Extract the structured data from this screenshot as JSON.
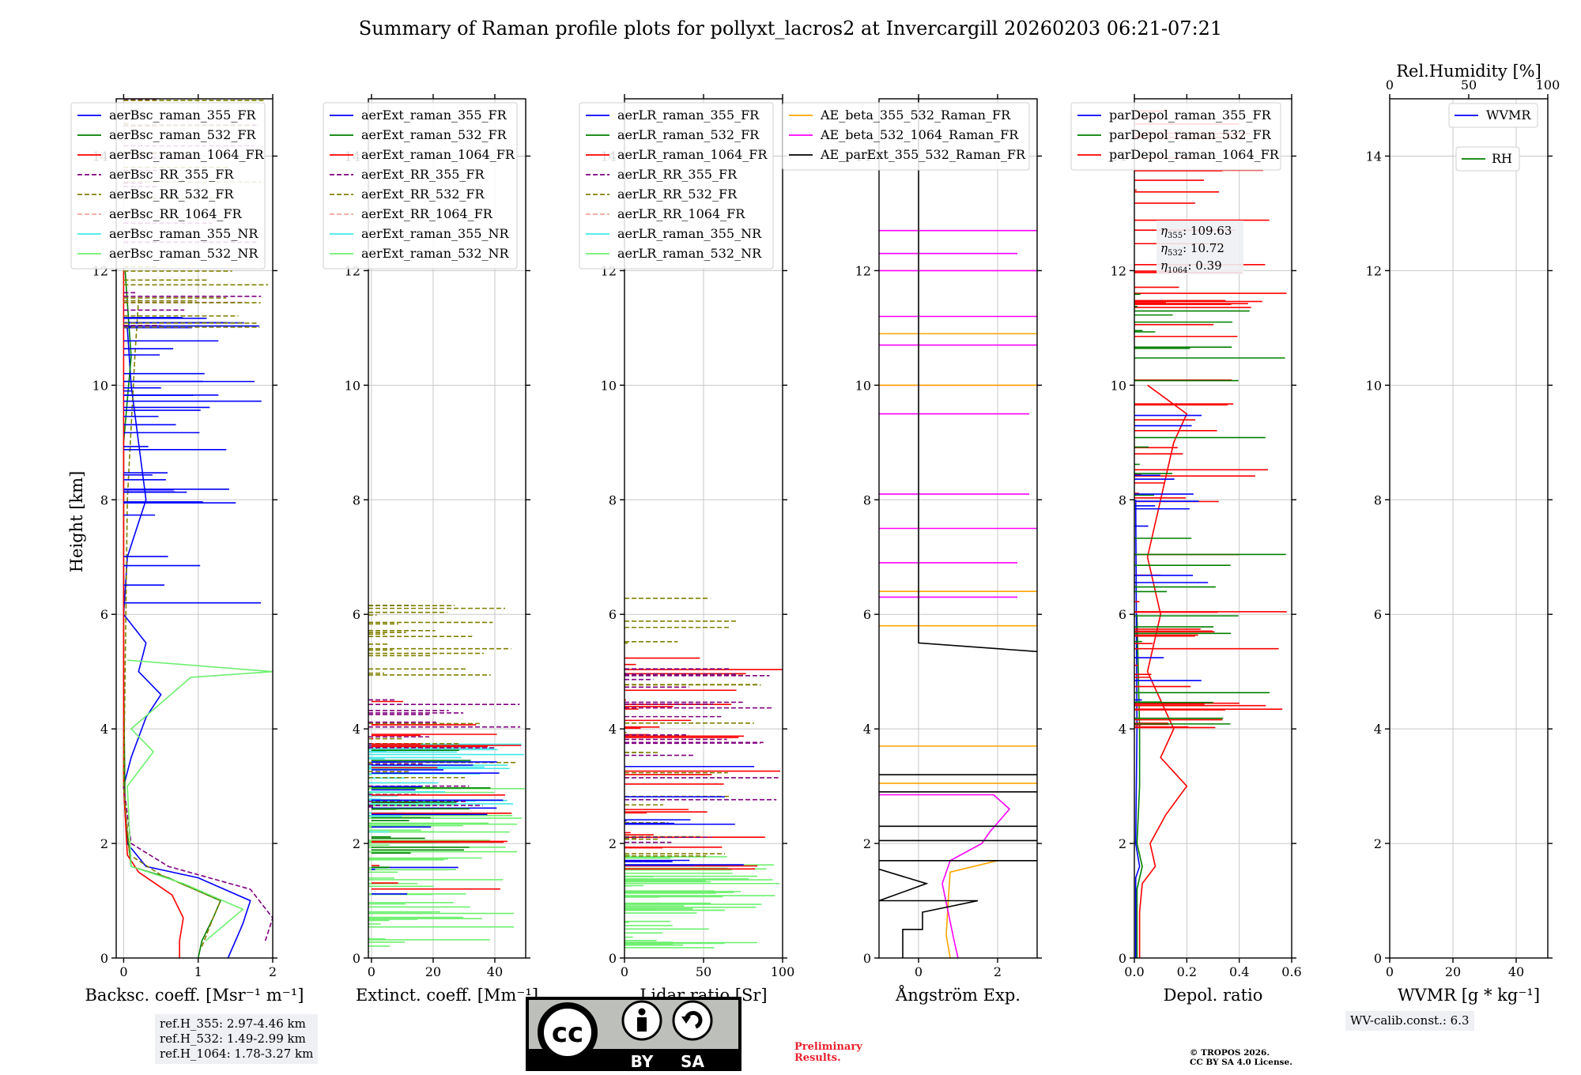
{
  "title": "Summary of Raman profile plots for pollyxt_lacros2 at Invercargill 20260203 06:21-07:21",
  "ylabel": "Height [km]",
  "colors": {
    "c355": "#0000ff",
    "c532": "#008000",
    "c1064": "#ff0000",
    "rr355": "#800080",
    "rr532": "#808000",
    "rr1064": "#f4a39a",
    "nr355": "#40e8e8",
    "nr532": "#6ef06e",
    "orange": "#ffa500",
    "magenta": "#ff00ff",
    "black": "#000000"
  },
  "chart_data": [
    {
      "type": "line",
      "name": "backscatter",
      "xlabel": "Backsc. coeff. [Msr⁻¹ m⁻¹]",
      "xlim": [
        -0.1,
        2
      ],
      "ylim": [
        0,
        15
      ],
      "xticks": [
        "0",
        "1",
        "2"
      ],
      "xtick_values": [
        0,
        1,
        2
      ],
      "series": [
        "aerBsc_raman_355_FR",
        "aerBsc_raman_532_FR",
        "aerBsc_raman_1064_FR",
        "aerBsc_RR_355_FR",
        "aerBsc_RR_532_FR",
        "aerBsc_RR_1064_FR",
        "aerBsc_raman_355_NR",
        "aerBsc_raman_532_NR"
      ],
      "profiles": {
        "aerBsc_raman_355_FR": [
          [
            1.4,
            0
          ],
          [
            1.5,
            0.3
          ],
          [
            1.6,
            0.6
          ],
          [
            1.7,
            1.0
          ],
          [
            1.0,
            1.4
          ],
          [
            0.3,
            1.6
          ],
          [
            0.05,
            2.0
          ],
          [
            0.0,
            3.0
          ],
          [
            0.1,
            3.5
          ],
          [
            0.3,
            4.2
          ],
          [
            0.5,
            4.6
          ],
          [
            0.2,
            5.0
          ],
          [
            0.3,
            5.5
          ],
          [
            0.0,
            6.0
          ],
          [
            0.05,
            7.0
          ],
          [
            0.3,
            8.0
          ],
          [
            0.2,
            9.0
          ],
          [
            0.1,
            10.0
          ],
          [
            0.05,
            11.0
          ]
        ],
        "aerBsc_raman_532_FR": [
          [
            1.0,
            0
          ],
          [
            1.05,
            0.3
          ],
          [
            1.2,
            0.7
          ],
          [
            1.3,
            1.0
          ],
          [
            0.6,
            1.4
          ],
          [
            0.1,
            1.6
          ],
          [
            0.02,
            2.5
          ],
          [
            0.0,
            5.0
          ],
          [
            0.0,
            9.0
          ],
          [
            0.1,
            10.5
          ],
          [
            0.02,
            12.0
          ]
        ],
        "aerBsc_raman_1064_FR": [
          [
            0.75,
            0
          ],
          [
            0.75,
            0.3
          ],
          [
            0.8,
            0.7
          ],
          [
            0.65,
            1.1
          ],
          [
            0.2,
            1.5
          ],
          [
            0.05,
            1.8
          ],
          [
            0.0,
            3.0
          ],
          [
            0.0,
            12.0
          ]
        ],
        "aerBsc_RR_355_FR": [
          [
            1.9,
            0.3
          ],
          [
            2.0,
            0.7
          ],
          [
            1.7,
            1.2
          ],
          [
            0.6,
            1.6
          ],
          [
            0.1,
            2.0
          ],
          [
            0.0,
            3.0
          ]
        ],
        "aerBsc_RR_532_FR": [
          [
            1.05,
            0.2
          ],
          [
            1.2,
            0.7
          ],
          [
            1.3,
            1.0
          ],
          [
            0.5,
            1.45
          ],
          [
            0.08,
            1.8
          ],
          [
            0.0,
            3.0
          ],
          [
            0.05,
            8.0
          ],
          [
            0.15,
            10.5
          ],
          [
            0.2,
            11.5
          ]
        ],
        "aerBsc_raman_532_NR": [
          [
            1.1,
            0.3
          ],
          [
            1.6,
            0.85
          ],
          [
            0.8,
            1.3
          ],
          [
            0.1,
            1.6
          ],
          [
            0.05,
            3.0
          ],
          [
            0.4,
            3.6
          ],
          [
            0.1,
            4.0
          ],
          [
            0.9,
            4.9
          ],
          [
            2.0,
            5.0
          ],
          [
            0.05,
            5.2
          ]
        ]
      }
    },
    {
      "type": "line",
      "name": "extinction",
      "xlabel": "Extinct. coeff. [Mm⁻¹]",
      "xlim": [
        -1,
        50
      ],
      "ylim": [
        0,
        15
      ],
      "xticks": [
        "0",
        "20",
        "40"
      ],
      "xtick_values": [
        0,
        20,
        40
      ],
      "series": [
        "aerExt_raman_355_FR",
        "aerExt_raman_532_FR",
        "aerExt_raman_1064_FR",
        "aerExt_RR_355_FR",
        "aerExt_RR_532_FR",
        "aerExt_RR_1064_FR",
        "aerExt_raman_355_NR",
        "aerExt_raman_532_NR"
      ]
    },
    {
      "type": "line",
      "name": "lidar_ratio",
      "xlabel": "Lidar ratio [Sr]",
      "xlim": [
        0,
        100
      ],
      "ylim": [
        0,
        15
      ],
      "xticks": [
        "0",
        "50",
        "100"
      ],
      "xtick_values": [
        0,
        50,
        100
      ],
      "series": [
        "aerLR_raman_355_FR",
        "aerLR_raman_532_FR",
        "aerLR_raman_1064_FR",
        "aerLR_RR_355_FR",
        "aerLR_RR_532_FR",
        "aerLR_RR_1064_FR",
        "aerLR_raman_355_NR",
        "aerLR_raman_532_NR"
      ]
    },
    {
      "type": "line",
      "name": "angstrom",
      "xlabel": "Ångström Exp.",
      "xlim": [
        -1,
        3
      ],
      "ylim": [
        0,
        15
      ],
      "xticks": [
        "0",
        "2"
      ],
      "xtick_values": [
        0,
        2
      ],
      "series": [
        "AE_beta_355_532_Raman_FR",
        "AE_beta_532_1064_Raman_FR",
        "AE_parExt_355_532_Raman_FR"
      ],
      "profiles": {
        "AE_beta_355_532_Raman_FR": [
          [
            0.8,
            0
          ],
          [
            0.7,
            0.4
          ],
          [
            0.75,
            1.0
          ],
          [
            0.8,
            1.5
          ],
          [
            2.0,
            1.7
          ]
        ],
        "AE_beta_532_1064_Raman_FR": [
          [
            1.0,
            0
          ],
          [
            0.9,
            0.3
          ],
          [
            0.6,
            1.3
          ],
          [
            0.8,
            1.7
          ],
          [
            1.6,
            2.0
          ],
          [
            1.8,
            2.2
          ],
          [
            2.3,
            2.6
          ],
          [
            1.9,
            2.85
          ],
          [
            -1.0,
            2.85
          ]
        ],
        "AE_parExt_355_532_Raman_FR": [
          [
            -0.4,
            0.0
          ],
          [
            -0.4,
            0.5
          ],
          [
            0.1,
            0.5
          ],
          [
            0.1,
            0.8
          ],
          [
            1.5,
            1.0
          ],
          [
            -1,
            1.0
          ],
          [
            0.2,
            1.3
          ],
          [
            -1,
            1.55
          ]
        ]
      }
    },
    {
      "type": "line",
      "name": "depolarization",
      "xlabel": "Depol. ratio",
      "xlim": [
        0,
        0.6
      ],
      "ylim": [
        0,
        15
      ],
      "xticks": [
        "0.0",
        "0.2",
        "0.4",
        "0.6"
      ],
      "xtick_values": [
        0,
        0.2,
        0.4,
        0.6
      ],
      "series": [
        "parDepol_raman_355_FR",
        "parDepol_raman_532_FR",
        "parDepol_raman_1064_FR"
      ],
      "annotation": [
        {
          "sym": "η",
          "sub": "355",
          "text": ": 109.63"
        },
        {
          "sym": "η",
          "sub": "532",
          "text": ": 10.72"
        },
        {
          "sym": "η",
          "sub": "1064",
          "text": ": 0.39"
        }
      ],
      "profiles": {
        "parDepol_raman_1064_FR": [
          [
            0.02,
            0
          ],
          [
            0.02,
            0.8
          ],
          [
            0.03,
            1.3
          ],
          [
            0.08,
            1.6
          ],
          [
            0.06,
            2.0
          ],
          [
            0.12,
            2.5
          ],
          [
            0.2,
            3.0
          ],
          [
            0.1,
            3.5
          ],
          [
            0.15,
            4.0
          ],
          [
            0.05,
            5.0
          ],
          [
            0.1,
            6.0
          ],
          [
            0.05,
            7.0
          ],
          [
            0.1,
            8.0
          ],
          [
            0.15,
            9.0
          ],
          [
            0.2,
            9.5
          ],
          [
            0.05,
            10.0
          ]
        ],
        "parDepol_raman_532_FR": [
          [
            0.01,
            0
          ],
          [
            0.01,
            1.2
          ],
          [
            0.03,
            1.6
          ],
          [
            0.01,
            2.0
          ],
          [
            0.02,
            3.0
          ],
          [
            0.02,
            4.0
          ],
          [
            0.01,
            6.0
          ]
        ],
        "parDepol_raman_355_FR": [
          [
            0.005,
            0
          ],
          [
            0.005,
            1.4
          ],
          [
            0.02,
            1.6
          ],
          [
            0.005,
            2.0
          ],
          [
            0.01,
            4.0
          ],
          [
            0.005,
            8.0
          ]
        ]
      }
    },
    {
      "type": "line",
      "name": "water_vapor",
      "xlabel": "WVMR [g * kg⁻¹]",
      "top_xlabel": "Rel.Humidity [%]",
      "xlim": [
        0,
        50
      ],
      "ylim": [
        0,
        15
      ],
      "xticks": [
        "0",
        "20",
        "40"
      ],
      "xtick_values": [
        0,
        20,
        40
      ],
      "top_xticks": [
        "0",
        "50",
        "100"
      ],
      "top_xtick_values": [
        0,
        50,
        100
      ],
      "series": [
        "WVMR",
        "RH"
      ]
    }
  ],
  "yticks": [
    "0",
    "2",
    "4",
    "6",
    "8",
    "10",
    "12",
    "14"
  ],
  "ytick_values": [
    0,
    2,
    4,
    6,
    8,
    10,
    12,
    14
  ],
  "ref_box": [
    "ref.H_355: 2.97-4.46 km",
    "ref.H_532: 1.49-2.99 km",
    "ref.H_1064: 1.78-3.27 km"
  ],
  "wv_box": "WV-calib.const.: 6.3",
  "license_logo": {
    "cc": "cc",
    "by": "BY",
    "sa": "SA"
  },
  "preliminary": [
    "Preliminary",
    "Results."
  ],
  "copyright": [
    "© TROPOS 2026.",
    "CC BY SA 4.0 License."
  ]
}
